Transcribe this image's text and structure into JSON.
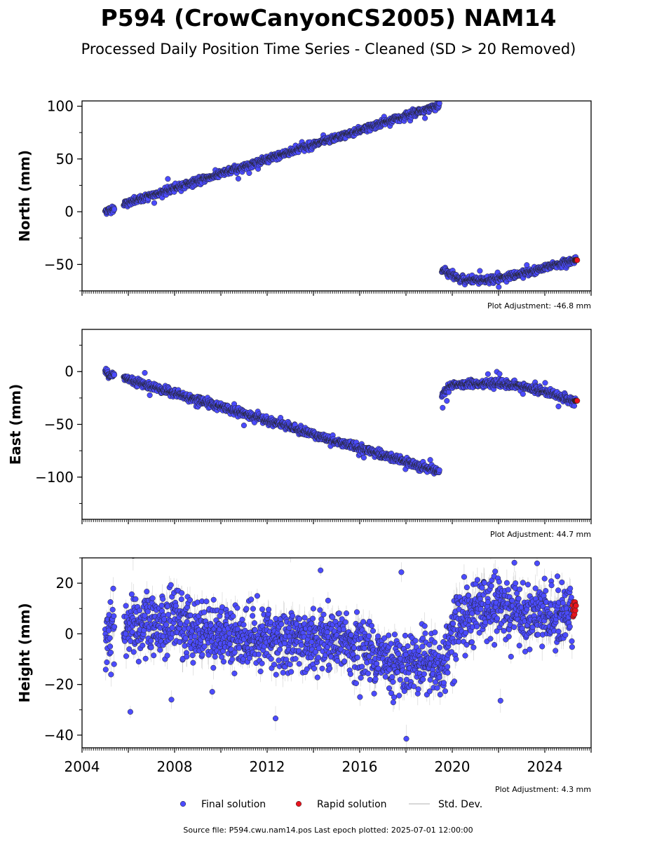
{
  "title": "P594 (CrowCanyonCS2005) NAM14",
  "subtitle": "Processed Daily Position Time Series - Cleaned (SD > 20 Removed)",
  "colors": {
    "final": "#4b4bff",
    "rapid": "#e8141e",
    "std": "#999999",
    "edge": "#222222"
  },
  "chart_data": [
    {
      "type": "scatter",
      "name": "north-panel",
      "ylabel": "North (mm)",
      "ylim": [
        -75,
        105
      ],
      "yticks": [
        -50,
        0,
        50,
        100
      ],
      "xlim": [
        2004,
        2026
      ],
      "adjustment": "Plot Adjustment: -46.8 mm",
      "segments": [
        {
          "x": [
            2005.0,
            2005.4
          ],
          "y": [
            1,
            2
          ]
        },
        {
          "x": [
            2005.8,
            2019.45
          ],
          "y": [
            7,
            101
          ]
        },
        {
          "x": [
            2019.55,
            2020.5,
            2021.5,
            2022.5,
            2023.5,
            2024.5,
            2025.35
          ],
          "y": [
            -55,
            -65,
            -65,
            -61,
            -57,
            -50,
            -46
          ]
        }
      ],
      "rapid": {
        "x": [
          2025.3,
          2025.4
        ],
        "y": [
          -46,
          -45.5
        ]
      }
    },
    {
      "type": "scatter",
      "name": "east-panel",
      "ylabel": "East (mm)",
      "ylim": [
        -140,
        40
      ],
      "yticks": [
        -100,
        -50,
        0
      ],
      "xlim": [
        2004,
        2026
      ],
      "adjustment": "Plot Adjustment: 44.7 mm",
      "segments": [
        {
          "x": [
            2005.0,
            2005.4
          ],
          "y": [
            0,
            -4
          ]
        },
        {
          "x": [
            2005.8,
            2019.45
          ],
          "y": [
            -6,
            -95
          ]
        },
        {
          "x": [
            2019.55,
            2020.0,
            2021.0,
            2022.0,
            2023.0,
            2024.0,
            2025.35
          ],
          "y": [
            -22,
            -13,
            -11,
            -11,
            -14,
            -19,
            -28
          ]
        }
      ],
      "rapid": {
        "x": [
          2025.3,
          2025.4
        ],
        "y": [
          -28,
          -27.5
        ]
      }
    },
    {
      "type": "scatter",
      "name": "height-panel",
      "ylabel": "Height (mm)",
      "ylim": [
        -45,
        30
      ],
      "yticks": [
        -40,
        -20,
        0,
        20
      ],
      "xlim": [
        2004,
        2026
      ],
      "xticks": [
        2004,
        2008,
        2012,
        2016,
        2020,
        2024
      ],
      "adjustment": "Plot Adjustment: 4.3 mm",
      "segments": [
        {
          "x": [
            2005.0,
            2005.4
          ],
          "y": [
            -3,
            3
          ]
        },
        {
          "x": [
            2005.8,
            2008.0,
            2010.0,
            2012.0,
            2014.0,
            2016.0,
            2017.5,
            2019.0,
            2019.5,
            2020.0,
            2021.0,
            2022.0,
            2023.0,
            2024.0,
            2025.2
          ],
          "y": [
            2,
            4,
            0,
            -2,
            -3,
            -5,
            -12,
            -10,
            -15,
            2,
            10,
            11,
            7,
            6,
            8
          ]
        }
      ],
      "rapid": {
        "x": [
          2025.2,
          2025.35
        ],
        "y": [
          6,
          13
        ]
      }
    }
  ],
  "legend": {
    "final": "Final solution",
    "rapid": "Rapid solution",
    "std": "Std. Dev."
  },
  "footer": "Source file: P594.cwu.nam14.pos  Last epoch plotted: 2025-07-01 12:00:00"
}
